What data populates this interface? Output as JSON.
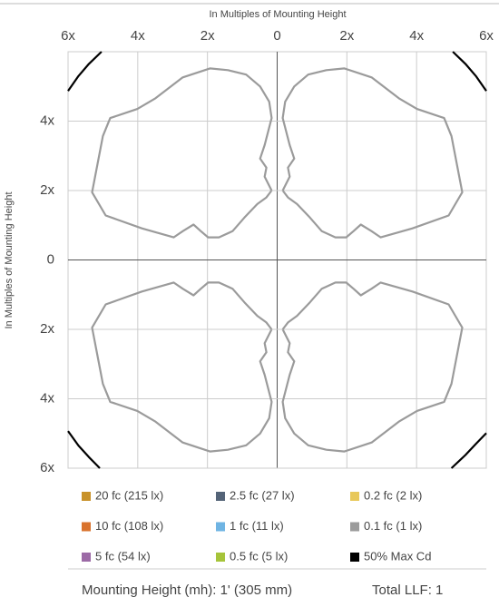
{
  "chart_data": {
    "type": "contour",
    "x_label": "In Multiples of Mounting Height",
    "y_label": "In Multiples of Mounting Height",
    "xlim": [
      -6,
      6
    ],
    "ylim": [
      -6,
      6
    ],
    "xticks": [
      {
        "value": -6,
        "label": "6x"
      },
      {
        "value": -4,
        "label": "4x"
      },
      {
        "value": -2,
        "label": "2x"
      },
      0,
      {
        "value": 2,
        "label": "2x"
      },
      {
        "value": 4,
        "label": "4x"
      },
      {
        "value": 6,
        "label": "6x"
      }
    ],
    "yticks": [
      {
        "value": -6,
        "label": "6x"
      },
      {
        "value": -4,
        "label": "4x"
      },
      {
        "value": -2,
        "label": "2x"
      },
      0,
      {
        "value": 2,
        "label": "2x"
      },
      {
        "value": 4,
        "label": "4x"
      }
    ],
    "grid": true,
    "series": [
      {
        "name": "20 fc (215 lx)",
        "color": "#c8922a"
      },
      {
        "name": "2.5 fc (27 lx)",
        "color": "#546478"
      },
      {
        "name": "0.2 fc (2 lx)",
        "color": "#e8c85a"
      },
      {
        "name": "10 fc (108 lx)",
        "color": "#d9732e"
      },
      {
        "name": "1 fc (11 lx)",
        "color": "#6fb4e3"
      },
      {
        "name": "0.1 fc (1 lx)",
        "color": "#9b9b9b",
        "x": [
          0.16,
          0.36,
          0.31,
          0.49,
          0.36,
          0.16,
          0.23,
          0.49,
          0.89,
          1.41,
          1.93,
          2.71,
          3.49,
          4.01,
          4.79,
          5.0,
          5.31,
          4.92,
          3.88,
          2.97,
          2.71,
          2.4,
          2.19,
          1.98,
          1.67,
          1.28,
          0.94,
          0.57,
          0.31,
          0.16,
          null,
          -0.16,
          -0.36,
          -0.31,
          -0.49,
          -0.36,
          -0.16,
          -0.23,
          -0.49,
          -0.89,
          -1.41,
          -1.93,
          -2.71,
          -3.49,
          -4.01,
          -4.79,
          -5.0,
          -5.31,
          -4.92,
          -3.88,
          -2.97,
          -2.71,
          -2.4,
          -2.19,
          -1.98,
          -1.67,
          -1.28,
          -0.94,
          -0.57,
          -0.31,
          -0.16,
          null,
          0.16,
          0.36,
          0.31,
          0.49,
          0.36,
          0.16,
          0.23,
          0.49,
          0.89,
          1.41,
          1.93,
          2.71,
          3.49,
          4.01,
          4.79,
          5.0,
          5.31,
          4.92,
          3.88,
          2.97,
          2.71,
          2.4,
          2.19,
          1.98,
          1.67,
          1.28,
          0.94,
          0.57,
          0.31,
          0.16,
          null,
          -0.16,
          -0.36,
          -0.31,
          -0.49,
          -0.36,
          -0.16,
          -0.23,
          -0.49,
          -0.89,
          -1.41,
          -1.93,
          -2.71,
          -3.49,
          -4.01,
          -4.79,
          -5.0,
          -5.31,
          -4.92,
          -3.88,
          -2.97,
          -2.71,
          -2.4,
          -2.19,
          -1.98,
          -1.67,
          -1.28,
          -0.94,
          -0.57,
          -0.31,
          -0.16
        ],
        "y": [
          2.0,
          2.4,
          2.66,
          2.92,
          3.31,
          4.09,
          4.56,
          5.0,
          5.34,
          5.47,
          5.52,
          5.26,
          4.66,
          4.35,
          4.09,
          3.57,
          1.95,
          1.28,
          0.91,
          0.65,
          0.83,
          1.02,
          0.83,
          0.65,
          0.65,
          0.83,
          1.22,
          1.61,
          1.8,
          2.0,
          null,
          2.0,
          2.4,
          2.66,
          2.92,
          3.31,
          4.09,
          4.56,
          5.0,
          5.34,
          5.47,
          5.52,
          5.26,
          4.66,
          4.35,
          4.09,
          3.57,
          1.95,
          1.28,
          0.91,
          0.65,
          0.83,
          1.02,
          0.83,
          0.65,
          0.65,
          0.83,
          1.22,
          1.61,
          1.8,
          2.0,
          null,
          -2.0,
          -2.4,
          -2.66,
          -2.92,
          -3.31,
          -4.09,
          -4.56,
          -5.0,
          -5.34,
          -5.47,
          -5.52,
          -5.26,
          -4.66,
          -4.35,
          -4.09,
          -3.57,
          -1.95,
          -1.28,
          -0.91,
          -0.65,
          -0.83,
          -1.02,
          -0.83,
          -0.65,
          -0.65,
          -0.83,
          -1.22,
          -1.61,
          -1.8,
          -2.0,
          null,
          -2.0,
          -2.4,
          -2.66,
          -2.92,
          -3.31,
          -4.09,
          -4.56,
          -5.0,
          -5.34,
          -5.47,
          -5.52,
          -5.26,
          -4.66,
          -4.35,
          -4.09,
          -3.57,
          -1.95,
          -1.28,
          -0.91,
          -0.65,
          -0.83,
          -1.02,
          -0.83,
          -0.65,
          -0.65,
          -0.83,
          -1.22,
          -1.61,
          -1.8,
          -2.0
        ]
      },
      {
        "name": "5 fc (54 lx)",
        "color": "#9c6aa6"
      },
      {
        "name": "0.5 fc (5 lx)",
        "color": "#a6c43a"
      },
      {
        "name": "50% Max Cd",
        "color": "#000000",
        "x": [
          -6,
          -5.7,
          -5.4,
          -5.04,
          null,
          5.04,
          5.4,
          5.7,
          6,
          null,
          -6,
          -5.7,
          -5.4,
          -5.09,
          null,
          5.0,
          5.4,
          5.7,
          6
        ],
        "y": [
          4.87,
          5.3,
          5.65,
          6,
          null,
          6,
          5.65,
          5.3,
          4.87,
          null,
          -4.93,
          -5.35,
          -5.68,
          -6,
          null,
          -6,
          -5.62,
          -5.3,
          -4.99
        ]
      }
    ],
    "footer_left": "Mounting Height (mh): 1' (305 mm)",
    "footer_right": "Total LLF: 1"
  }
}
